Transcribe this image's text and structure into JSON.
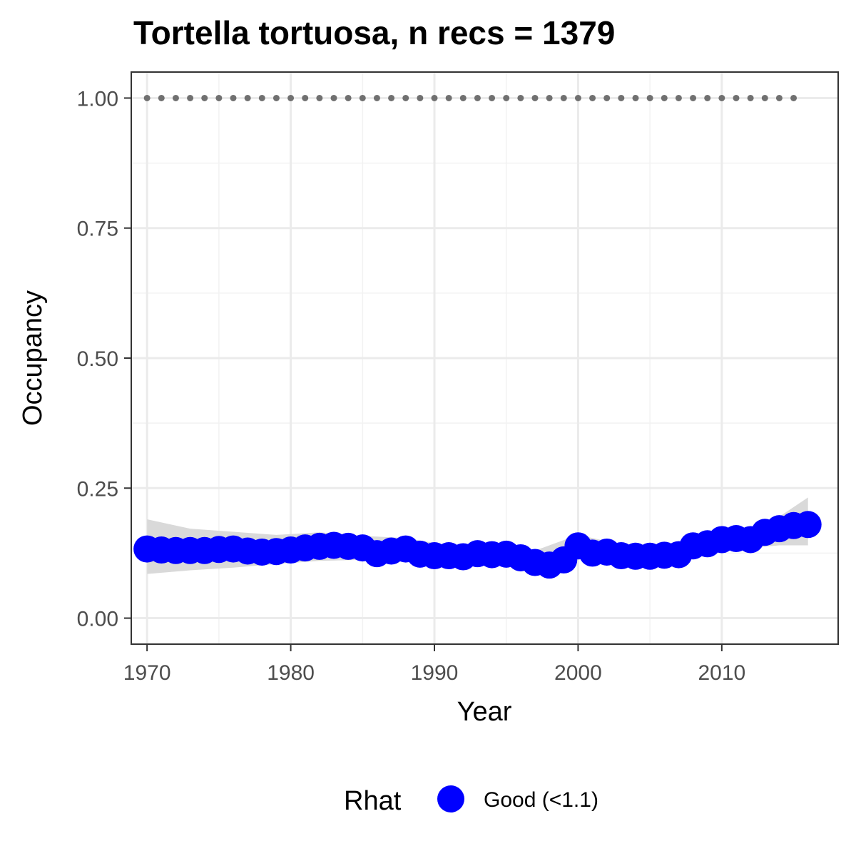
{
  "chart_data": {
    "type": "scatter",
    "title": "Tortella tortuosa, n recs = 1379",
    "xlabel": "Year",
    "ylabel": "Occupancy",
    "xlim": [
      1968.9,
      2018.1
    ],
    "ylim": [
      -0.05,
      1.05
    ],
    "x_ticks": [
      1970,
      1980,
      1990,
      2000,
      2010
    ],
    "x_tick_labels": [
      "1970",
      "1980",
      "1990",
      "2000",
      "2010"
    ],
    "y_ticks": [
      0.0,
      0.25,
      0.5,
      0.75,
      1.0
    ],
    "y_tick_labels": [
      "0.00",
      "0.25",
      "0.50",
      "0.75",
      "1.00"
    ],
    "grid": true,
    "legend_position": "bottom",
    "legend": {
      "title": "Rhat",
      "entries": [
        {
          "label": "Good (<1.1)",
          "color": "#0000ff"
        }
      ]
    },
    "series": [
      {
        "name": "Good (<1.1)",
        "color": "#0000ff",
        "x": [
          1970,
          1971,
          1972,
          1973,
          1974,
          1975,
          1976,
          1977,
          1978,
          1979,
          1980,
          1981,
          1982,
          1983,
          1984,
          1985,
          1986,
          1987,
          1988,
          1989,
          1990,
          1991,
          1992,
          1993,
          1994,
          1995,
          1996,
          1997,
          1998,
          1999,
          2000,
          2001,
          2002,
          2003,
          2004,
          2005,
          2006,
          2007,
          2008,
          2009,
          2010,
          2011,
          2012,
          2013,
          2014,
          2015,
          2016
        ],
        "y": [
          0.133,
          0.131,
          0.13,
          0.13,
          0.13,
          0.132,
          0.133,
          0.129,
          0.127,
          0.128,
          0.131,
          0.135,
          0.138,
          0.14,
          0.138,
          0.135,
          0.124,
          0.129,
          0.133,
          0.123,
          0.12,
          0.12,
          0.118,
          0.124,
          0.122,
          0.123,
          0.116,
          0.107,
          0.102,
          0.112,
          0.139,
          0.125,
          0.127,
          0.12,
          0.119,
          0.119,
          0.121,
          0.122,
          0.139,
          0.143,
          0.151,
          0.153,
          0.151,
          0.165,
          0.172,
          0.178,
          0.18
        ]
      }
    ],
    "ribbon": {
      "color": "#d9d9d9",
      "x": [
        1970,
        1973,
        1976,
        1979,
        1982,
        1985,
        1988,
        1991,
        1994,
        1997,
        2000,
        2003,
        2006,
        2009,
        2012,
        2014,
        2016
      ],
      "lower": [
        0.085,
        0.092,
        0.097,
        0.104,
        0.11,
        0.112,
        0.11,
        0.106,
        0.103,
        0.093,
        0.113,
        0.108,
        0.109,
        0.128,
        0.135,
        0.14,
        0.14
      ],
      "upper": [
        0.19,
        0.172,
        0.166,
        0.16,
        0.165,
        0.158,
        0.154,
        0.14,
        0.14,
        0.13,
        0.16,
        0.142,
        0.136,
        0.158,
        0.172,
        0.195,
        0.232
      ]
    },
    "reference_points": {
      "color": "#707070",
      "x": [
        1970,
        1971,
        1972,
        1973,
        1974,
        1975,
        1976,
        1977,
        1978,
        1979,
        1980,
        1981,
        1982,
        1983,
        1984,
        1985,
        1986,
        1987,
        1988,
        1989,
        1990,
        1991,
        1992,
        1993,
        1994,
        1995,
        1996,
        1997,
        1998,
        1999,
        2000,
        2001,
        2002,
        2003,
        2004,
        2005,
        2006,
        2007,
        2008,
        2009,
        2010,
        2011,
        2012,
        2013,
        2014,
        2015
      ],
      "y": 1.0
    }
  }
}
